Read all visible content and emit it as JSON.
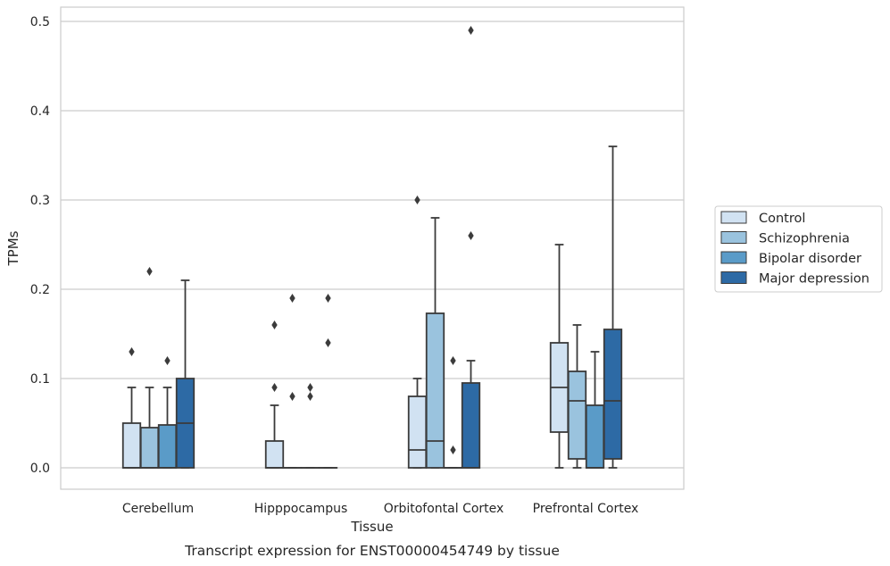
{
  "chart_data": {
    "type": "box",
    "xlabel": "Tissue",
    "ylabel": "TPMs",
    "caption": "Transcript expression for ENST00000454749 by tissue",
    "ylim": [
      -0.024,
      0.515
    ],
    "yticks": [
      0.0,
      0.1,
      0.2,
      0.3,
      0.4,
      0.5
    ],
    "ytick_labels": [
      "0.0",
      "0.1",
      "0.2",
      "0.3",
      "0.4",
      "0.5"
    ],
    "grid": true,
    "legend_position": "right",
    "categories": [
      "Cerebellum",
      "Hipppocampus",
      "Orbitofontal Cortex",
      "Prefrontal Cortex"
    ],
    "series": [
      {
        "name": "Control",
        "color": "#d1e2f2",
        "boxes": [
          {
            "min": 0.0,
            "q1": 0.0,
            "median": 0.0,
            "q3": 0.05,
            "max": 0.09,
            "outliers": [
              0.13
            ]
          },
          {
            "min": 0.0,
            "q1": 0.0,
            "median": 0.0,
            "q3": 0.03,
            "max": 0.07,
            "outliers": [
              0.09,
              0.16
            ]
          },
          {
            "min": 0.0,
            "q1": 0.0,
            "median": 0.02,
            "q3": 0.08,
            "max": 0.1,
            "outliers": [
              0.3
            ]
          },
          {
            "min": 0.0,
            "q1": 0.04,
            "median": 0.09,
            "q3": 0.14,
            "max": 0.25,
            "outliers": []
          }
        ]
      },
      {
        "name": "Schizophrenia",
        "color": "#9ac3de",
        "boxes": [
          {
            "min": 0.0,
            "q1": 0.0,
            "median": 0.0,
            "q3": 0.045,
            "max": 0.09,
            "outliers": [
              0.22
            ]
          },
          {
            "min": 0.0,
            "q1": 0.0,
            "median": 0.0,
            "q3": 0.0,
            "max": 0.0,
            "outliers": [
              0.08,
              0.19
            ]
          },
          {
            "min": 0.0,
            "q1": 0.0,
            "median": 0.03,
            "q3": 0.173,
            "max": 0.28,
            "outliers": []
          },
          {
            "min": 0.0,
            "q1": 0.01,
            "median": 0.075,
            "q3": 0.108,
            "max": 0.16,
            "outliers": []
          }
        ]
      },
      {
        "name": "Bipolar disorder",
        "color": "#5a9bc8",
        "boxes": [
          {
            "min": 0.0,
            "q1": 0.0,
            "median": 0.0,
            "q3": 0.048,
            "max": 0.09,
            "outliers": [
              0.12
            ]
          },
          {
            "min": 0.0,
            "q1": 0.0,
            "median": 0.0,
            "q3": 0.0,
            "max": 0.0,
            "outliers": [
              0.08,
              0.09
            ]
          },
          {
            "min": 0.0,
            "q1": 0.0,
            "median": 0.0,
            "q3": 0.0,
            "max": 0.0,
            "outliers": [
              0.02,
              0.12
            ]
          },
          {
            "min": 0.0,
            "q1": 0.0,
            "median": 0.0,
            "q3": 0.07,
            "max": 0.13,
            "outliers": []
          }
        ]
      },
      {
        "name": "Major depression",
        "color": "#2d6aa5",
        "boxes": [
          {
            "min": 0.0,
            "q1": 0.0,
            "median": 0.05,
            "q3": 0.1,
            "max": 0.21,
            "outliers": []
          },
          {
            "min": 0.0,
            "q1": 0.0,
            "median": 0.0,
            "q3": 0.0,
            "max": 0.0,
            "outliers": [
              0.14,
              0.19
            ]
          },
          {
            "min": 0.0,
            "q1": 0.0,
            "median": 0.0,
            "q3": 0.095,
            "max": 0.12,
            "outliers": [
              0.26,
              0.49
            ]
          },
          {
            "min": 0.0,
            "q1": 0.01,
            "median": 0.075,
            "q3": 0.155,
            "max": 0.36,
            "outliers": []
          }
        ]
      }
    ]
  }
}
